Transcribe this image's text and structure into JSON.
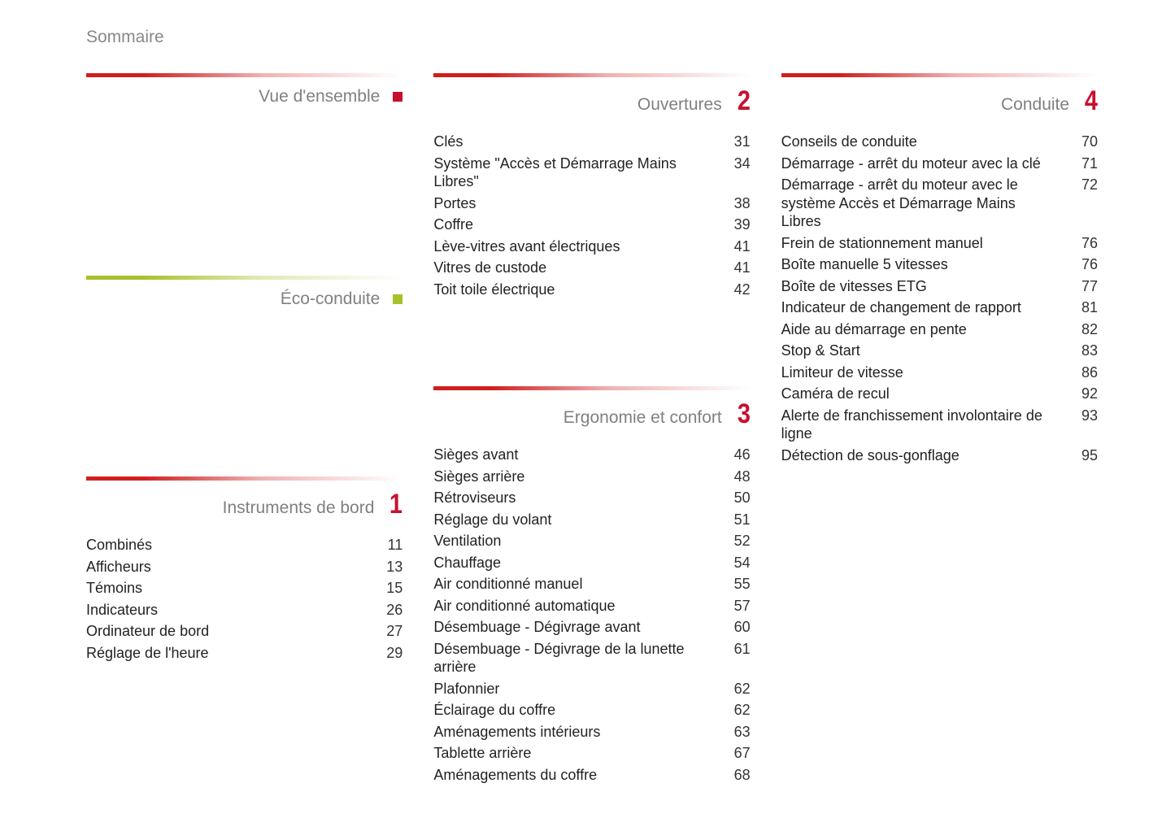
{
  "page_title": "Sommaire",
  "colors": {
    "section_number": "#c8102e",
    "section_title": "#808080",
    "page_title": "#888888",
    "text": "#222222",
    "gradient_red_from": "#d01f1f",
    "gradient_green_from": "#a6c22a"
  },
  "sections": {
    "overview": {
      "title": "Vue d'ensemble",
      "gradient": "red",
      "marker": "badge-red"
    },
    "eco": {
      "title": "Éco-conduite",
      "gradient": "green",
      "marker": "badge-green"
    },
    "instruments": {
      "title": "Instruments de bord",
      "gradient": "red",
      "number": "1",
      "entries": [
        {
          "label": "Combinés",
          "page": "11"
        },
        {
          "label": "Afficheurs",
          "page": "13"
        },
        {
          "label": "Témoins",
          "page": "15"
        },
        {
          "label": "Indicateurs",
          "page": "26"
        },
        {
          "label": "Ordinateur de bord",
          "page": "27"
        },
        {
          "label": "Réglage de l'heure",
          "page": "29"
        }
      ]
    },
    "openings": {
      "title": "Ouvertures",
      "gradient": "red",
      "number": "2",
      "entries": [
        {
          "label": "Clés",
          "page": "31"
        },
        {
          "label": "Système \"Accès et Démarrage Mains Libres\"",
          "page": "34"
        },
        {
          "label": "Portes",
          "page": "38"
        },
        {
          "label": "Coffre",
          "page": "39"
        },
        {
          "label": "Lève-vitres avant électriques",
          "page": "41"
        },
        {
          "label": "Vitres de custode",
          "page": "41"
        },
        {
          "label": "Toit toile électrique",
          "page": "42"
        }
      ]
    },
    "ergonomics": {
      "title": "Ergonomie et confort",
      "gradient": "red",
      "number": "3",
      "entries": [
        {
          "label": "Sièges avant",
          "page": "46"
        },
        {
          "label": "Sièges arrière",
          "page": "48"
        },
        {
          "label": "Rétroviseurs",
          "page": "50"
        },
        {
          "label": "Réglage du volant",
          "page": "51"
        },
        {
          "label": "Ventilation",
          "page": "52"
        },
        {
          "label": "Chauffage",
          "page": "54"
        },
        {
          "label": "Air conditionné manuel",
          "page": "55"
        },
        {
          "label": "Air conditionné automatique",
          "page": "57"
        },
        {
          "label": "Désembuage - Dégivrage avant",
          "page": "60"
        },
        {
          "label": "Désembuage - Dégivrage de la lunette arrière",
          "page": "61"
        },
        {
          "label": "Plafonnier",
          "page": "62"
        },
        {
          "label": "Éclairage du coffre",
          "page": "62"
        },
        {
          "label": "Aménagements intérieurs",
          "page": "63"
        },
        {
          "label": "Tablette arrière",
          "page": "67"
        },
        {
          "label": "Aménagements du coffre",
          "page": "68"
        }
      ]
    },
    "driving": {
      "title": "Conduite",
      "gradient": "red",
      "number": "4",
      "entries": [
        {
          "label": "Conseils de conduite",
          "page": "70"
        },
        {
          "label": "Démarrage - arrêt du moteur avec la clé",
          "page": "71"
        },
        {
          "label": "Démarrage - arrêt du moteur avec le système Accès et Démarrage Mains Libres",
          "page": "72"
        },
        {
          "label": "Frein de stationnement manuel",
          "page": "76"
        },
        {
          "label": "Boîte manuelle 5 vitesses",
          "page": "76"
        },
        {
          "label": "Boîte de vitesses ETG",
          "page": "77"
        },
        {
          "label": "Indicateur de changement de rapport",
          "page": "81"
        },
        {
          "label": "Aide au démarrage en pente",
          "page": "82"
        },
        {
          "label": "Stop & Start",
          "page": "83"
        },
        {
          "label": "Limiteur de vitesse",
          "page": "86"
        },
        {
          "label": "Caméra de recul",
          "page": "92"
        },
        {
          "label": "Alerte de franchissement involontaire de ligne",
          "page": "93"
        },
        {
          "label": "Détection de sous-gonflage",
          "page": "95"
        }
      ]
    }
  }
}
